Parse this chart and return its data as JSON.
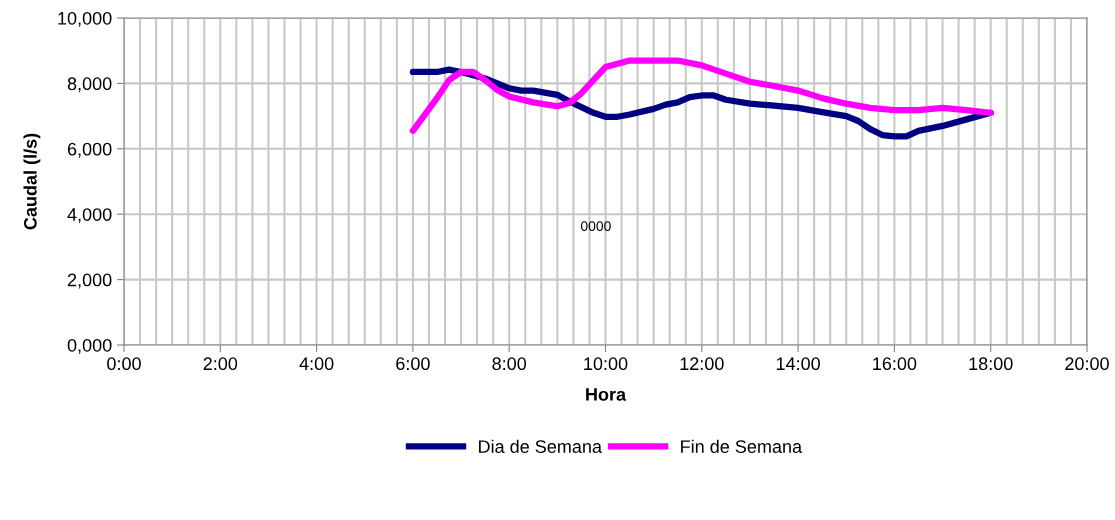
{
  "chart_data": {
    "type": "line",
    "xlabel": "Hora",
    "ylabel": "Caudal (l/s)",
    "xlim": [
      0,
      20
    ],
    "ylim": [
      0,
      10000
    ],
    "xticks": [
      {
        "value": 0,
        "label": "0:00"
      },
      {
        "value": 0.333,
        "label": null
      },
      {
        "value": 0.667,
        "label": null
      },
      {
        "value": 1,
        "label": null
      },
      {
        "value": 1.333,
        "label": null
      },
      {
        "value": 1.667,
        "label": null
      },
      {
        "value": 2,
        "label": "2:00"
      },
      {
        "value": 2.333,
        "label": null
      },
      {
        "value": 2.667,
        "label": null
      },
      {
        "value": 3,
        "label": null
      },
      {
        "value": 3.333,
        "label": null
      },
      {
        "value": 3.667,
        "label": null
      },
      {
        "value": 4,
        "label": "4:00"
      },
      {
        "value": 4.333,
        "label": null
      },
      {
        "value": 4.667,
        "label": null
      },
      {
        "value": 5,
        "label": null
      },
      {
        "value": 5.333,
        "label": null
      },
      {
        "value": 5.667,
        "label": null
      },
      {
        "value": 6,
        "label": "6:00"
      },
      {
        "value": 6.333,
        "label": null
      },
      {
        "value": 6.667,
        "label": null
      },
      {
        "value": 7,
        "label": null
      },
      {
        "value": 7.333,
        "label": null
      },
      {
        "value": 7.667,
        "label": null
      },
      {
        "value": 8,
        "label": "8:00"
      },
      {
        "value": 8.333,
        "label": null
      },
      {
        "value": 8.667,
        "label": null
      },
      {
        "value": 9,
        "label": null
      },
      {
        "value": 9.333,
        "label": null
      },
      {
        "value": 9.667,
        "label": null
      },
      {
        "value": 10,
        "label": "10:00"
      },
      {
        "value": 10.333,
        "label": null
      },
      {
        "value": 10.667,
        "label": null
      },
      {
        "value": 11,
        "label": null
      },
      {
        "value": 11.333,
        "label": null
      },
      {
        "value": 11.667,
        "label": null
      },
      {
        "value": 12,
        "label": "12:00"
      },
      {
        "value": 12.333,
        "label": null
      },
      {
        "value": 12.667,
        "label": null
      },
      {
        "value": 13,
        "label": null
      },
      {
        "value": 13.333,
        "label": null
      },
      {
        "value": 13.667,
        "label": null
      },
      {
        "value": 14,
        "label": "14:00"
      },
      {
        "value": 14.333,
        "label": null
      },
      {
        "value": 14.667,
        "label": null
      },
      {
        "value": 15,
        "label": null
      },
      {
        "value": 15.333,
        "label": null
      },
      {
        "value": 15.667,
        "label": null
      },
      {
        "value": 16,
        "label": "16:00"
      },
      {
        "value": 16.333,
        "label": null
      },
      {
        "value": 16.667,
        "label": null
      },
      {
        "value": 17,
        "label": null
      },
      {
        "value": 17.333,
        "label": null
      },
      {
        "value": 17.667,
        "label": null
      },
      {
        "value": 18,
        "label": "18:00"
      },
      {
        "value": 18.333,
        "label": null
      },
      {
        "value": 18.667,
        "label": null
      },
      {
        "value": 19,
        "label": null
      },
      {
        "value": 19.333,
        "label": null
      },
      {
        "value": 19.667,
        "label": null
      },
      {
        "value": 20,
        "label": "20:00"
      }
    ],
    "yticks": [
      {
        "value": 0,
        "label": "0,000"
      },
      {
        "value": 2000,
        "label": "2,000"
      },
      {
        "value": 4000,
        "label": "4,000"
      },
      {
        "value": 6000,
        "label": "6,000"
      },
      {
        "value": 8000,
        "label": "8,000"
      },
      {
        "value": 10000,
        "label": "10,000"
      }
    ],
    "grid": true,
    "legend": "bottom",
    "marker": "none",
    "line_style": "solid",
    "annotations": [
      "0000"
    ],
    "series": [
      {
        "name": "Dia de Semana",
        "color": "#000080",
        "x": [
          6,
          6.5,
          6.75,
          7,
          7.5,
          8,
          8.25,
          8.5,
          9,
          9.25,
          9.75,
          10,
          10.25,
          10.5,
          11,
          11.25,
          11.5,
          11.75,
          12,
          12.25,
          12.5,
          13,
          13.5,
          14,
          14.5,
          15,
          15.25,
          15.5,
          15.75,
          16,
          16.25,
          16.5,
          17,
          17.5,
          18
        ],
        "values": [
          8350,
          8350,
          8420,
          8350,
          8150,
          7850,
          7780,
          7780,
          7650,
          7450,
          7100,
          6980,
          6980,
          7050,
          7220,
          7350,
          7420,
          7580,
          7630,
          7630,
          7500,
          7380,
          7320,
          7250,
          7120,
          7000,
          6850,
          6600,
          6420,
          6380,
          6380,
          6550,
          6700,
          6900,
          7100
        ]
      },
      {
        "name": "Fin de Semana",
        "color": "#ff00ff",
        "x": [
          6,
          6.5,
          6.75,
          7,
          7.25,
          7.5,
          7.75,
          8,
          8.5,
          9,
          9.25,
          9.5,
          9.75,
          10,
          10.5,
          11,
          11.5,
          12,
          12.5,
          13,
          13.5,
          14,
          14.5,
          15,
          15.5,
          16,
          16.5,
          17,
          17.5,
          18
        ],
        "values": [
          6550,
          7550,
          8100,
          8350,
          8350,
          8100,
          7800,
          7600,
          7420,
          7300,
          7400,
          7700,
          8100,
          8500,
          8700,
          8700,
          8700,
          8550,
          8300,
          8050,
          7920,
          7780,
          7550,
          7380,
          7250,
          7180,
          7180,
          7250,
          7180,
          7100
        ]
      }
    ]
  }
}
